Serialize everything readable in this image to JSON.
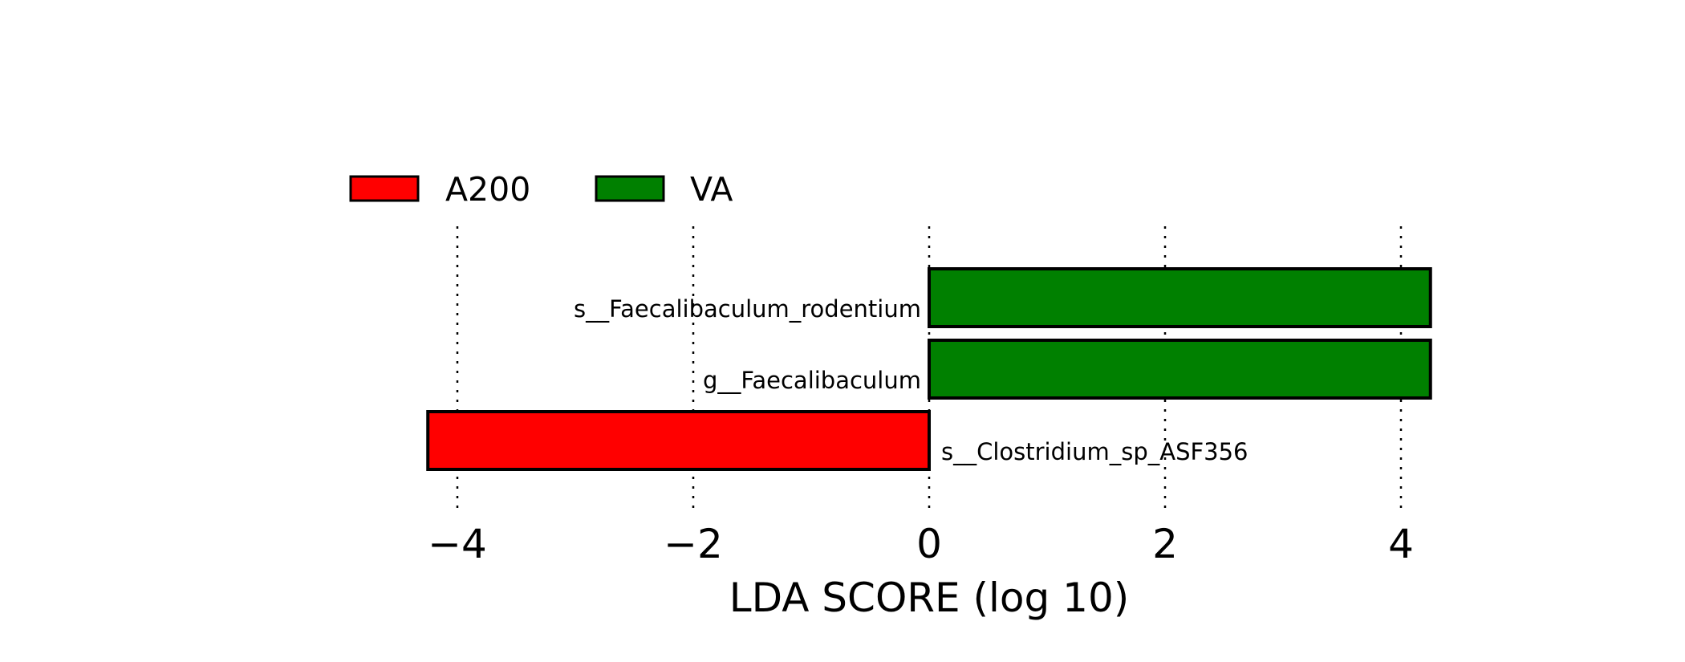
{
  "chart_data": {
    "type": "bar",
    "orientation": "horizontal",
    "title": "",
    "xlabel": "LDA SCORE (log 10)",
    "ylabel": "",
    "xlim": [
      -4.2,
      4.2
    ],
    "xticks": [
      -4,
      -2,
      0,
      2,
      4
    ],
    "xtick_labels": [
      "−4",
      "−2",
      "0",
      "2",
      "4"
    ],
    "grid": "vertical dotted lines at x ticks",
    "legend": {
      "placement": "top-left",
      "entries": [
        {
          "name": "A200",
          "color": "#ff0000"
        },
        {
          "name": "VA",
          "color": "#008000"
        }
      ]
    },
    "bars": [
      {
        "label": "s__Faecalibaculum_rodentium",
        "value": 4.25,
        "group": "VA",
        "color": "#008000"
      },
      {
        "label": "g__Faecalibaculum",
        "value": 4.25,
        "group": "VA",
        "color": "#008000"
      },
      {
        "label": "s__Clostridium_sp_ASF356",
        "value": -4.25,
        "group": "A200",
        "color": "#ff0000"
      }
    ]
  }
}
